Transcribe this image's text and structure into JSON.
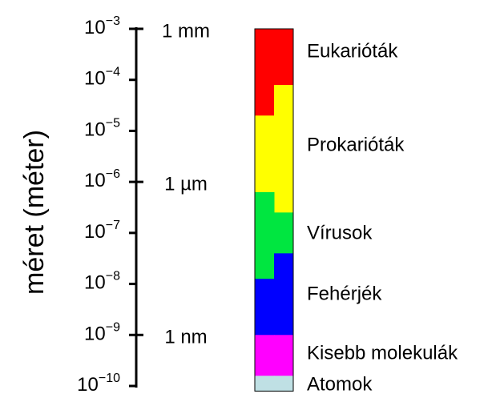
{
  "axis_label": "méret (méter)",
  "ticks": [
    {
      "value": -3,
      "base": "10",
      "exponent": "−3"
    },
    {
      "value": -4,
      "base": "10",
      "exponent": "−4"
    },
    {
      "value": -5,
      "base": "10",
      "exponent": "−5"
    },
    {
      "value": -6,
      "base": "10",
      "exponent": "−6"
    },
    {
      "value": -7,
      "base": "10",
      "exponent": "−7"
    },
    {
      "value": -8,
      "base": "10",
      "exponent": "−8"
    },
    {
      "value": -9,
      "base": "10",
      "exponent": "−9"
    },
    {
      "value": -10,
      "base": "10",
      "exponent": "−10"
    }
  ],
  "unit_labels": [
    {
      "value": -3,
      "label": "1 mm"
    },
    {
      "value": -6,
      "label": "1 µm"
    },
    {
      "value": -9,
      "label": "1 nm"
    }
  ],
  "groups": [
    {
      "label": "Eukarióták",
      "color": "#ff0000",
      "left": [
        -3,
        -4.7
      ],
      "right": [
        -3,
        -4.1
      ]
    },
    {
      "label": "Prokarióták",
      "color": "#ffff00",
      "left": [
        -4.7,
        -6.2
      ],
      "right": [
        -4.1,
        -6.6
      ]
    },
    {
      "label": "Vírusok",
      "color": "#00e640",
      "left": [
        -6.2,
        -7.9
      ],
      "right": [
        -6.6,
        -7.4
      ]
    },
    {
      "label": "Fehérjék",
      "color": "#0000ff",
      "left": [
        -7.9,
        -9
      ],
      "right": [
        -7.4,
        -9
      ]
    },
    {
      "label": "Kisebb molekulák",
      "color": "#ff00ff",
      "left": [
        -9,
        -9.8
      ],
      "right": [
        -9,
        -9.8
      ]
    },
    {
      "label": "Atomok",
      "color": "#bfe0e4",
      "left": [
        -9.8,
        -10.1
      ],
      "right": [
        -9.8,
        -10.1
      ]
    }
  ]
}
